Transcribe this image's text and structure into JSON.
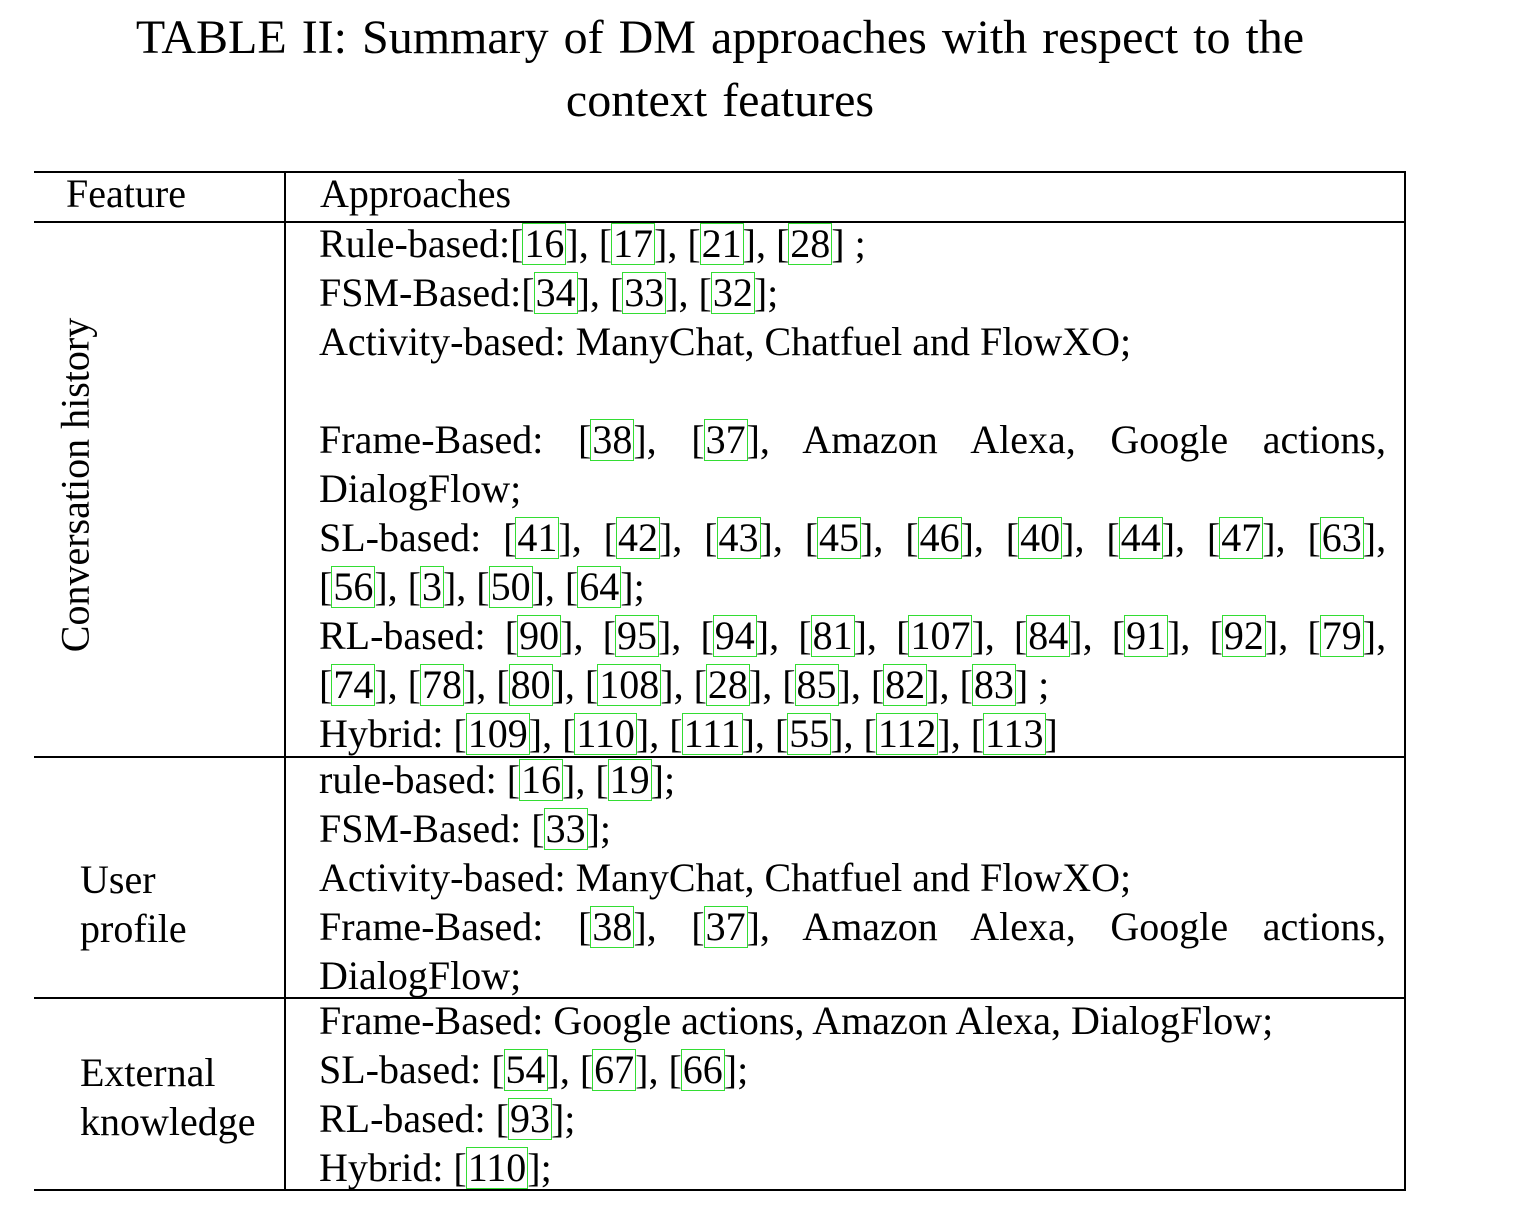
{
  "caption": {
    "line1": "TABLE II: Summary of DM approaches with respect to the",
    "line2": "context features"
  },
  "header": {
    "feature": "Feature",
    "approaches": "Approaches"
  },
  "rows": [
    {
      "feature": "Conversation history",
      "lines": [
        "Rule-based:[16], [17], [21], [28] ;",
        "FSM-Based:[34], [33], [32];",
        "Activity-based: ManyChat, Chatfuel and FlowXO;",
        "",
        "Frame-Based: [38], [37], Amazon Alexa, Google actions,",
        "DialogFlow;",
        "SL-based: [41], [42], [43], [45], [46], [40], [44], [47], [63],",
        "[56], [3], [50], [64];",
        "RL-based: [90], [95], [94], [81], [107], [84], [91], [92], [79],",
        "[74], [78], [80], [108], [28], [85], [82], [83] ;",
        "Hybrid: [109], [110], [111], [55], [112], [113]"
      ]
    },
    {
      "feature_line1": "User",
      "feature_line2": "profile",
      "lines": [
        "rule-based: [16], [19];",
        "FSM-Based: [33];",
        "Activity-based: ManyChat, Chatfuel and FlowXO;",
        "Frame-Based: [38], [37], Amazon Alexa, Google actions,",
        "DialogFlow;"
      ]
    },
    {
      "feature_line1": "External",
      "feature_line2": "knowledge",
      "lines": [
        "Frame-Based: Google actions, Amazon Alexa, DialogFlow;",
        "SL-based: [54], [67], [66];",
        "RL-based: [93];",
        "Hybrid: [110];"
      ]
    }
  ]
}
